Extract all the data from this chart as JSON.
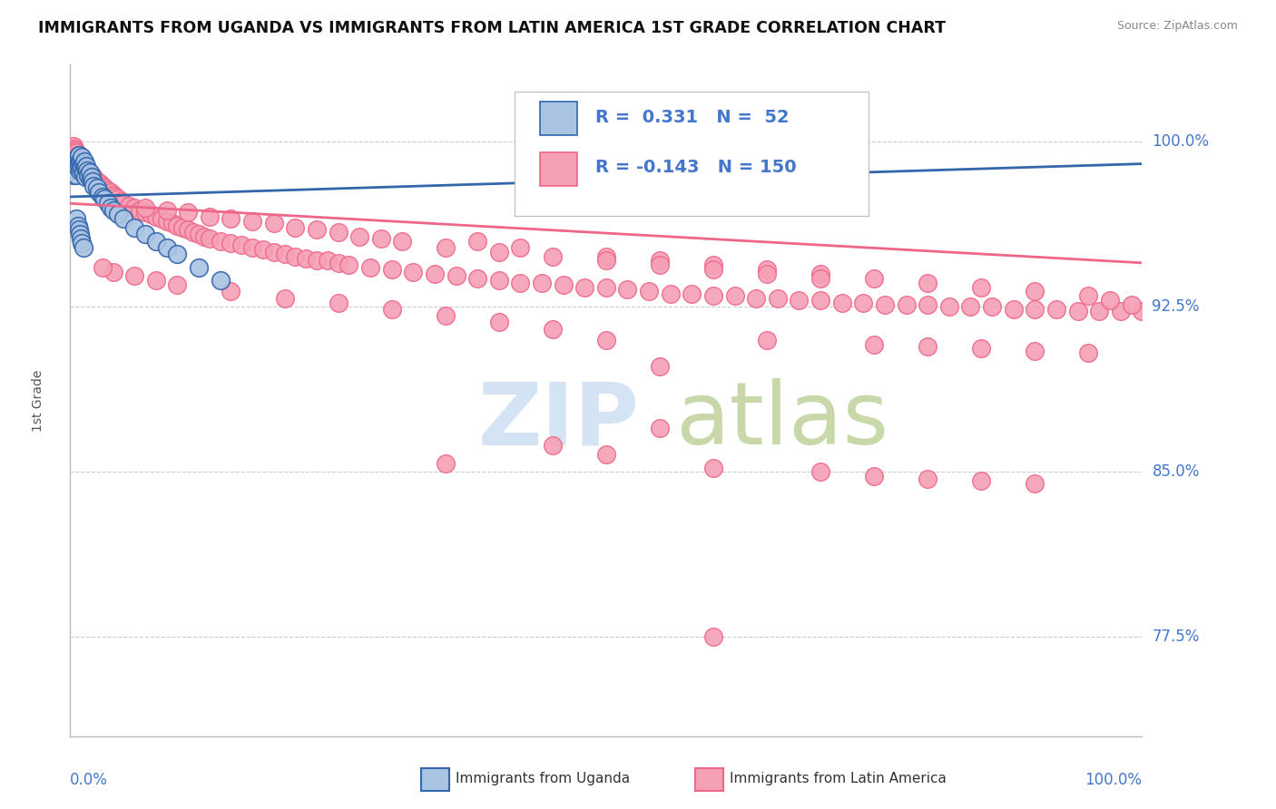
{
  "title": "IMMIGRANTS FROM UGANDA VS IMMIGRANTS FROM LATIN AMERICA 1ST GRADE CORRELATION CHART",
  "source": "Source: ZipAtlas.com",
  "ylabel": "1st Grade",
  "ylabel_ticks": [
    "77.5%",
    "85.0%",
    "92.5%",
    "100.0%"
  ],
  "ylabel_values": [
    0.775,
    0.85,
    0.925,
    1.0
  ],
  "xlim": [
    0.0,
    1.0
  ],
  "ylim": [
    0.73,
    1.035
  ],
  "color_uganda": "#aac4e4",
  "color_latam": "#f5a0b5",
  "color_trendline_uganda": "#3366aa",
  "color_trendline_latam": "#ee6688",
  "color_axis_labels": "#4477cc",
  "watermark_zip_color": "#d4e4f4",
  "watermark_atlas_color": "#c8d8a8",
  "uganda_x": [
    0.003,
    0.004,
    0.005,
    0.005,
    0.006,
    0.006,
    0.007,
    0.007,
    0.008,
    0.008,
    0.009,
    0.009,
    0.01,
    0.01,
    0.011,
    0.011,
    0.012,
    0.012,
    0.013,
    0.014,
    0.014,
    0.015,
    0.016,
    0.017,
    0.018,
    0.019,
    0.02,
    0.021,
    0.022,
    0.025,
    0.027,
    0.03,
    0.032,
    0.035,
    0.038,
    0.04,
    0.045,
    0.05,
    0.06,
    0.07,
    0.08,
    0.09,
    0.1,
    0.12,
    0.14,
    0.006,
    0.007,
    0.008,
    0.009,
    0.01,
    0.011,
    0.012
  ],
  "uganda_y": [
    0.985,
    0.988,
    0.99,
    0.987,
    0.992,
    0.985,
    0.993,
    0.988,
    0.994,
    0.99,
    0.991,
    0.987,
    0.992,
    0.988,
    0.993,
    0.989,
    0.99,
    0.986,
    0.991,
    0.988,
    0.984,
    0.989,
    0.987,
    0.985,
    0.986,
    0.983,
    0.984,
    0.982,
    0.98,
    0.979,
    0.977,
    0.975,
    0.974,
    0.972,
    0.97,
    0.969,
    0.967,
    0.965,
    0.961,
    0.958,
    0.955,
    0.952,
    0.949,
    0.943,
    0.937,
    0.965,
    0.962,
    0.96,
    0.958,
    0.956,
    0.954,
    0.952
  ],
  "latam_x": [
    0.003,
    0.004,
    0.005,
    0.006,
    0.007,
    0.008,
    0.009,
    0.01,
    0.011,
    0.012,
    0.013,
    0.014,
    0.015,
    0.016,
    0.018,
    0.02,
    0.022,
    0.025,
    0.028,
    0.03,
    0.032,
    0.035,
    0.038,
    0.04,
    0.042,
    0.045,
    0.048,
    0.05,
    0.055,
    0.06,
    0.065,
    0.07,
    0.075,
    0.08,
    0.085,
    0.09,
    0.095,
    0.1,
    0.105,
    0.11,
    0.115,
    0.12,
    0.125,
    0.13,
    0.14,
    0.15,
    0.16,
    0.17,
    0.18,
    0.19,
    0.2,
    0.21,
    0.22,
    0.23,
    0.24,
    0.25,
    0.26,
    0.28,
    0.3,
    0.32,
    0.34,
    0.36,
    0.38,
    0.4,
    0.42,
    0.44,
    0.46,
    0.48,
    0.5,
    0.52,
    0.54,
    0.56,
    0.58,
    0.6,
    0.62,
    0.64,
    0.66,
    0.68,
    0.7,
    0.72,
    0.74,
    0.76,
    0.78,
    0.8,
    0.82,
    0.84,
    0.86,
    0.88,
    0.9,
    0.92,
    0.94,
    0.96,
    0.98,
    1.0,
    0.38,
    0.42,
    0.5,
    0.55,
    0.6,
    0.65,
    0.7,
    0.75,
    0.8,
    0.85,
    0.9,
    0.95,
    0.97,
    0.99,
    0.07,
    0.09,
    0.11,
    0.13,
    0.15,
    0.17,
    0.19,
    0.21,
    0.23,
    0.25,
    0.27,
    0.29,
    0.31,
    0.35,
    0.4,
    0.45,
    0.5,
    0.55,
    0.6,
    0.65,
    0.7,
    0.65,
    0.75,
    0.8,
    0.85,
    0.9,
    0.95,
    0.55,
    0.45,
    0.5,
    0.35,
    0.6,
    0.7,
    0.75,
    0.8,
    0.85,
    0.9,
    0.6,
    0.55,
    0.5,
    0.45,
    0.4,
    0.35,
    0.3,
    0.25,
    0.2,
    0.15,
    0.1,
    0.08,
    0.06,
    0.04,
    0.03
  ],
  "latam_y": [
    0.998,
    0.997,
    0.996,
    0.995,
    0.994,
    0.993,
    0.993,
    0.992,
    0.991,
    0.99,
    0.989,
    0.989,
    0.988,
    0.987,
    0.986,
    0.985,
    0.984,
    0.982,
    0.981,
    0.98,
    0.979,
    0.978,
    0.977,
    0.976,
    0.975,
    0.974,
    0.973,
    0.972,
    0.971,
    0.97,
    0.969,
    0.968,
    0.967,
    0.966,
    0.965,
    0.964,
    0.963,
    0.962,
    0.961,
    0.96,
    0.959,
    0.958,
    0.957,
    0.956,
    0.955,
    0.954,
    0.953,
    0.952,
    0.951,
    0.95,
    0.949,
    0.948,
    0.947,
    0.946,
    0.946,
    0.945,
    0.944,
    0.943,
    0.942,
    0.941,
    0.94,
    0.939,
    0.938,
    0.937,
    0.936,
    0.936,
    0.935,
    0.934,
    0.934,
    0.933,
    0.932,
    0.931,
    0.931,
    0.93,
    0.93,
    0.929,
    0.929,
    0.928,
    0.928,
    0.927,
    0.927,
    0.926,
    0.926,
    0.926,
    0.925,
    0.925,
    0.925,
    0.924,
    0.924,
    0.924,
    0.923,
    0.923,
    0.923,
    0.923,
    0.955,
    0.952,
    0.948,
    0.946,
    0.944,
    0.942,
    0.94,
    0.938,
    0.936,
    0.934,
    0.932,
    0.93,
    0.928,
    0.926,
    0.97,
    0.969,
    0.968,
    0.966,
    0.965,
    0.964,
    0.963,
    0.961,
    0.96,
    0.959,
    0.957,
    0.956,
    0.955,
    0.952,
    0.95,
    0.948,
    0.946,
    0.944,
    0.942,
    0.94,
    0.938,
    0.91,
    0.908,
    0.907,
    0.906,
    0.905,
    0.904,
    0.87,
    0.862,
    0.858,
    0.854,
    0.852,
    0.85,
    0.848,
    0.847,
    0.846,
    0.845,
    0.775,
    0.898,
    0.91,
    0.915,
    0.918,
    0.921,
    0.924,
    0.927,
    0.929,
    0.932,
    0.935,
    0.937,
    0.939,
    0.941,
    0.943
  ],
  "trendline_uganda_x0": 0.0,
  "trendline_uganda_y0": 0.975,
  "trendline_uganda_x1": 1.0,
  "trendline_uganda_y1": 0.99,
  "trendline_latam_x0": 0.0,
  "trendline_latam_y0": 0.972,
  "trendline_latam_x1": 1.0,
  "trendline_latam_y1": 0.945
}
